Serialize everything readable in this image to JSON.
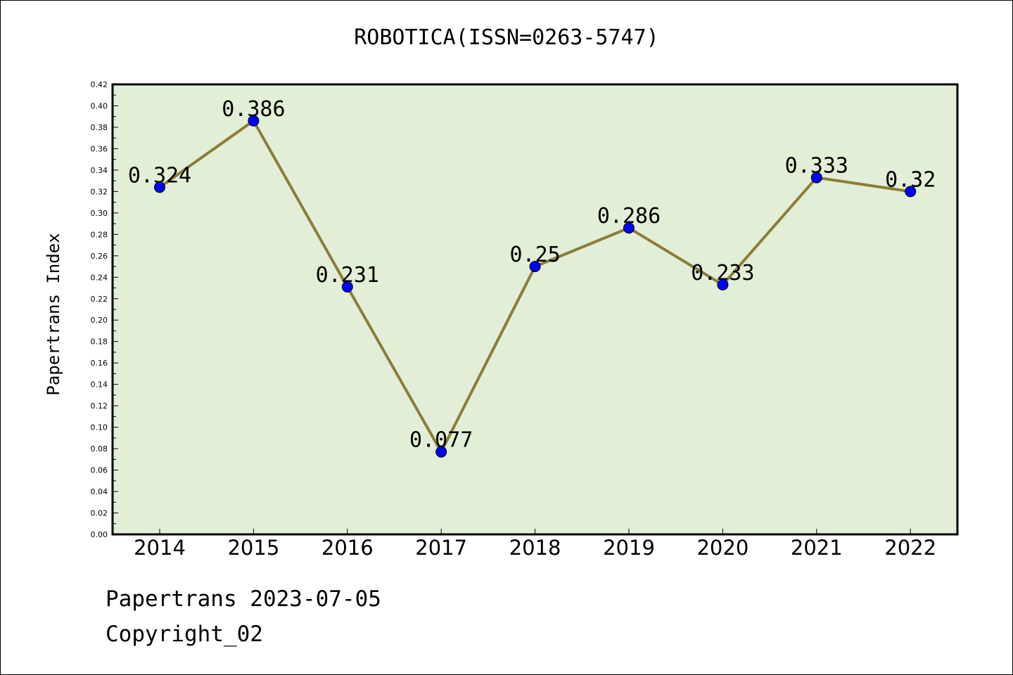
{
  "chart_data": {
    "type": "line",
    "title": "ROBOTICA(ISSN=0263-5747)",
    "xlabel": "",
    "ylabel": "Papertrans Index",
    "categories": [
      "2014",
      "2015",
      "2016",
      "2017",
      "2018",
      "2019",
      "2020",
      "2021",
      "2022"
    ],
    "values": [
      0.324,
      0.386,
      0.231,
      0.077,
      0.25,
      0.286,
      0.233,
      0.333,
      0.32
    ],
    "data_labels": [
      "0.324",
      "0.386",
      "0.231",
      "0.077",
      "0.25",
      "0.286",
      "0.233",
      "0.333",
      "0.32"
    ],
    "ylim": [
      0,
      0.42
    ],
    "yticks": [
      "0.00",
      "0.02",
      "0.04",
      "0.06",
      "0.08",
      "0.10",
      "0.12",
      "0.14",
      "0.16",
      "0.18",
      "0.20",
      "0.22",
      "0.24",
      "0.26",
      "0.28",
      "0.30",
      "0.32",
      "0.34",
      "0.36",
      "0.38",
      "0.40",
      "0.42"
    ],
    "grid": false,
    "legend": "none",
    "colors": {
      "line": "#8b7d3a",
      "marker": "#0000ff",
      "plot_background": "#e2efd6"
    }
  },
  "footer": {
    "date_line": "Papertrans 2023-07-05",
    "copyright_line": "Copyright_02"
  }
}
